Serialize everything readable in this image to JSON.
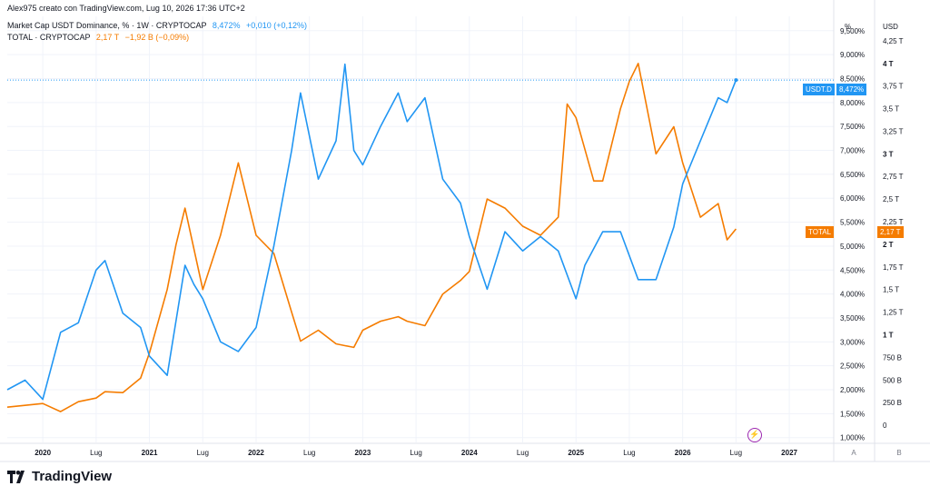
{
  "header": {
    "credit": "Alex975 creato con TradingView.com, Lug 10, 2026 17:36 UTC+2"
  },
  "legend": {
    "usdt": {
      "name": "Market Cap USDT Dominance, % · 1W · CRYPTOCAP",
      "value": "8,472%",
      "change": "+0,010 (+0,12%)",
      "color": "#2196f3"
    },
    "total": {
      "name": "TOTAL · CRYPTOCAP",
      "value": "2,17 T",
      "change": "−1,92 B (−0,09%)",
      "color": "#f57c00"
    }
  },
  "axes": {
    "left_unit": "%",
    "right_unit": "USD",
    "left_scale_button": "A",
    "right_scale_button": "B"
  },
  "tags": {
    "usdt_label": "USDT.D",
    "usdt_value": "8,472%",
    "total_label": "TOTAL",
    "total_value": "2,17 T"
  },
  "branding": {
    "logo_text": "TradingView"
  },
  "icons": {
    "bolt": "bolt-icon",
    "logo": "tradingview-logo-icon"
  },
  "chart_data": [
    {
      "type": "line",
      "title": "Market Cap USDT Dominance",
      "xlim": [
        "2019-09",
        "2027-06"
      ],
      "x_ticks": [
        "2020",
        "Lug",
        "2021",
        "Lug",
        "2022",
        "Lug",
        "2023",
        "Lug",
        "2024",
        "Lug",
        "2025",
        "Lug",
        "2026",
        "Lug",
        "2027"
      ],
      "ylabel": "%",
      "ylim": [
        0.9,
        9.8
      ],
      "y_ticks": [
        "9,500%",
        "9,000%",
        "8,500%",
        "8,000%",
        "7,500%",
        "7,000%",
        "6,500%",
        "6,000%",
        "5,500%",
        "5,000%",
        "4,500%",
        "4,000%",
        "3,500%",
        "3,000%",
        "2,500%",
        "2,000%",
        "1,500%",
        "1,000%"
      ],
      "y_tick_values": [
        9.5,
        9.0,
        8.5,
        8.0,
        7.5,
        7.0,
        6.5,
        6.0,
        5.5,
        5.0,
        4.5,
        4.0,
        3.5,
        3.0,
        2.5,
        2.0,
        1.5,
        1.0
      ],
      "grid": true,
      "series": [
        {
          "name": "USDT.D",
          "color": "#2196f3",
          "x": [
            "2019-09",
            "2019-11",
            "2020-01",
            "2020-03",
            "2020-05",
            "2020-07",
            "2020-08",
            "2020-10",
            "2020-12",
            "2021-01",
            "2021-03",
            "2021-05",
            "2021-06",
            "2021-07",
            "2021-09",
            "2021-11",
            "2022-01",
            "2022-03",
            "2022-05",
            "2022-06",
            "2022-08",
            "2022-10",
            "2022-11",
            "2022-12",
            "2023-01",
            "2023-03",
            "2023-05",
            "2023-06",
            "2023-08",
            "2023-10",
            "2023-12",
            "2024-01",
            "2024-03",
            "2024-05",
            "2024-07",
            "2024-09",
            "2024-11",
            "2025-01",
            "2025-02",
            "2025-04",
            "2025-06",
            "2025-08",
            "2025-10",
            "2025-12",
            "2026-01",
            "2026-03",
            "2026-05",
            "2026-06",
            "2026-07"
          ],
          "y": [
            2.0,
            2.2,
            1.8,
            3.2,
            3.4,
            4.5,
            4.7,
            3.6,
            3.3,
            2.7,
            2.3,
            4.6,
            4.2,
            3.9,
            3.0,
            2.8,
            3.3,
            5.0,
            7.0,
            8.2,
            6.4,
            7.2,
            8.8,
            7.0,
            6.7,
            7.5,
            8.2,
            7.6,
            8.1,
            6.4,
            5.9,
            5.2,
            4.1,
            5.3,
            4.9,
            5.2,
            4.9,
            3.9,
            4.6,
            5.3,
            5.3,
            4.3,
            4.3,
            5.4,
            6.3,
            7.2,
            8.1,
            8.0,
            8.47
          ]
        }
      ]
    },
    {
      "type": "line",
      "title": "TOTAL · CRYPTOCAP",
      "ylabel": "USD",
      "ylim": [
        -0.19,
        4.52
      ],
      "y_ticks": [
        "4,25 T",
        "4 T",
        "3,75 T",
        "3,5 T",
        "3,25 T",
        "3 T",
        "2,75 T",
        "2,5 T",
        "2,25 T",
        "2 T",
        "1,75 T",
        "1,5 T",
        "1,25 T",
        "1 T",
        "750 B",
        "500 B",
        "250 B",
        "0"
      ],
      "y_tick_values": [
        4.25,
        4.0,
        3.75,
        3.5,
        3.25,
        3.0,
        2.75,
        2.5,
        2.25,
        2.0,
        1.75,
        1.5,
        1.25,
        1.0,
        0.75,
        0.5,
        0.25,
        0
      ],
      "series": [
        {
          "name": "TOTAL",
          "color": "#f57c00",
          "x": [
            "2019-09",
            "2019-11",
            "2020-01",
            "2020-03",
            "2020-05",
            "2020-07",
            "2020-08",
            "2020-10",
            "2020-12",
            "2021-01",
            "2021-03",
            "2021-04",
            "2021-05",
            "2021-07",
            "2021-09",
            "2021-11",
            "2022-01",
            "2022-03",
            "2022-05",
            "2022-06",
            "2022-08",
            "2022-10",
            "2022-11",
            "2022-12",
            "2023-01",
            "2023-03",
            "2023-05",
            "2023-06",
            "2023-08",
            "2023-10",
            "2023-12",
            "2024-01",
            "2024-03",
            "2024-05",
            "2024-07",
            "2024-09",
            "2024-11",
            "2024-12",
            "2025-01",
            "2025-03",
            "2025-04",
            "2025-06",
            "2025-07",
            "2025-08",
            "2025-10",
            "2025-12",
            "2026-01",
            "2026-03",
            "2026-05",
            "2026-06",
            "2026-07"
          ],
          "y": [
            0.2,
            0.22,
            0.24,
            0.15,
            0.26,
            0.3,
            0.37,
            0.36,
            0.52,
            0.8,
            1.5,
            2.0,
            2.4,
            1.5,
            2.1,
            2.9,
            2.1,
            1.9,
            1.25,
            0.93,
            1.05,
            0.9,
            0.88,
            0.86,
            1.05,
            1.15,
            1.2,
            1.15,
            1.1,
            1.45,
            1.6,
            1.7,
            2.5,
            2.4,
            2.2,
            2.1,
            2.3,
            3.55,
            3.4,
            2.7,
            2.7,
            3.5,
            3.8,
            4.0,
            3.0,
            3.3,
            2.9,
            2.3,
            2.45,
            2.05,
            2.17
          ]
        }
      ]
    }
  ]
}
